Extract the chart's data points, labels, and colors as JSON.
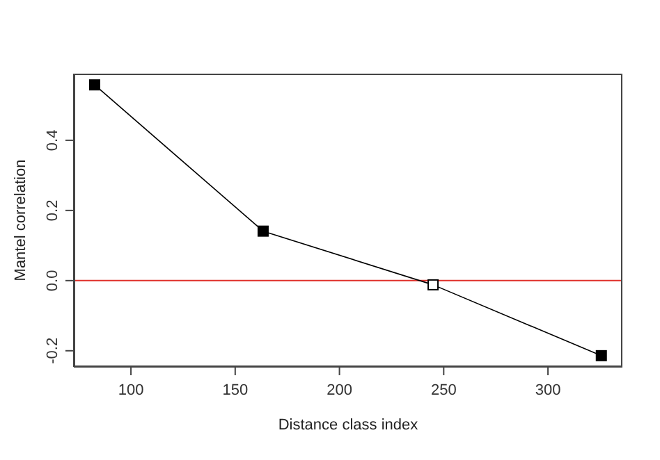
{
  "chart_data": {
    "type": "line",
    "xlabel": "Distance class index",
    "ylabel": "Mantel correlation",
    "x": [
      82.6,
      163.4,
      244.9,
      325.6
    ],
    "series": [
      {
        "color": "#000000",
        "colors": [
          "#000000",
          "#000000",
          "#ffffff",
          "#000000"
        ],
        "values": [
          0.558,
          0.141,
          -0.012,
          -0.214
        ]
      }
    ],
    "xlim": [
      72.6,
      335.7
    ],
    "xticks": [
      100,
      150,
      200,
      250,
      300
    ],
    "ylim": [
      -0.246,
      0.59
    ],
    "yticks": [
      {
        "value": -0.2,
        "label": "-0.2"
      },
      {
        "value": 0,
        "label": "0.0"
      },
      {
        "value": 0.2,
        "label": "0.2"
      },
      {
        "value": 0.4,
        "label": "0.4"
      }
    ],
    "ref_lines": [
      {
        "axis": "y",
        "value": 0,
        "color": "#e0302a"
      }
    ],
    "marker": "square",
    "line_style": "solid"
  }
}
